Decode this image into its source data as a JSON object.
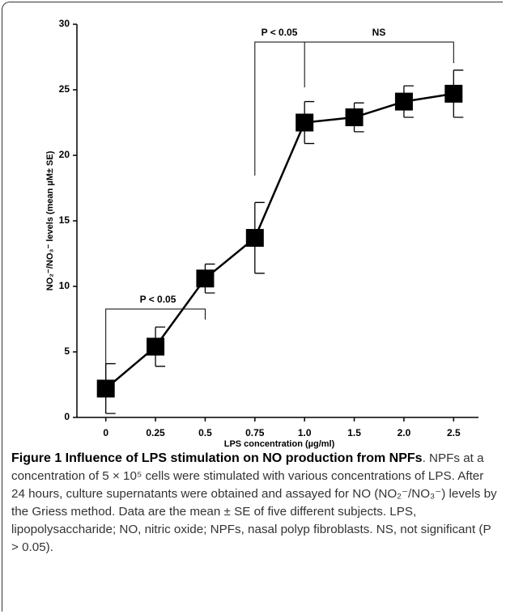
{
  "chart_data": {
    "type": "line",
    "categories": [
      "0",
      "0.25",
      "0.5",
      "0.75",
      "1.0",
      "1.5",
      "2.0",
      "2.5"
    ],
    "values": [
      2.2,
      5.4,
      10.6,
      13.7,
      22.5,
      22.9,
      24.1,
      24.7
    ],
    "errors": [
      1.9,
      1.5,
      1.1,
      2.7,
      1.6,
      1.1,
      1.2,
      1.8
    ],
    "color": "#000000",
    "xlabel": "LPS concentration (µg/ml)",
    "ylabel": "NO₂⁻/NO₃⁻ levels (mean µM± SE)",
    "ylim": [
      0,
      30
    ],
    "yticks": [
      0,
      5,
      10,
      15,
      20,
      25,
      30
    ],
    "annotations": [
      "P < 0.05",
      "P < 0.05",
      "NS"
    ]
  },
  "caption": {
    "title": "Figure 1 Influence of LPS stimulation on NO production from NPFs",
    "text": ". NPFs at a concentration of 5 × 10⁵ cells were stimulated with various concentrations of LPS. After 24 hours, culture supernatants were obtained and assayed for NO (NO₂⁻/NO₃⁻) levels by the Griess method. Data are the mean ± SE of five different subjects. LPS, lipopolysaccharide; NO, nitric oxide; NPFs, nasal polyp fibroblasts. NS, not significant (P > 0.05)."
  }
}
